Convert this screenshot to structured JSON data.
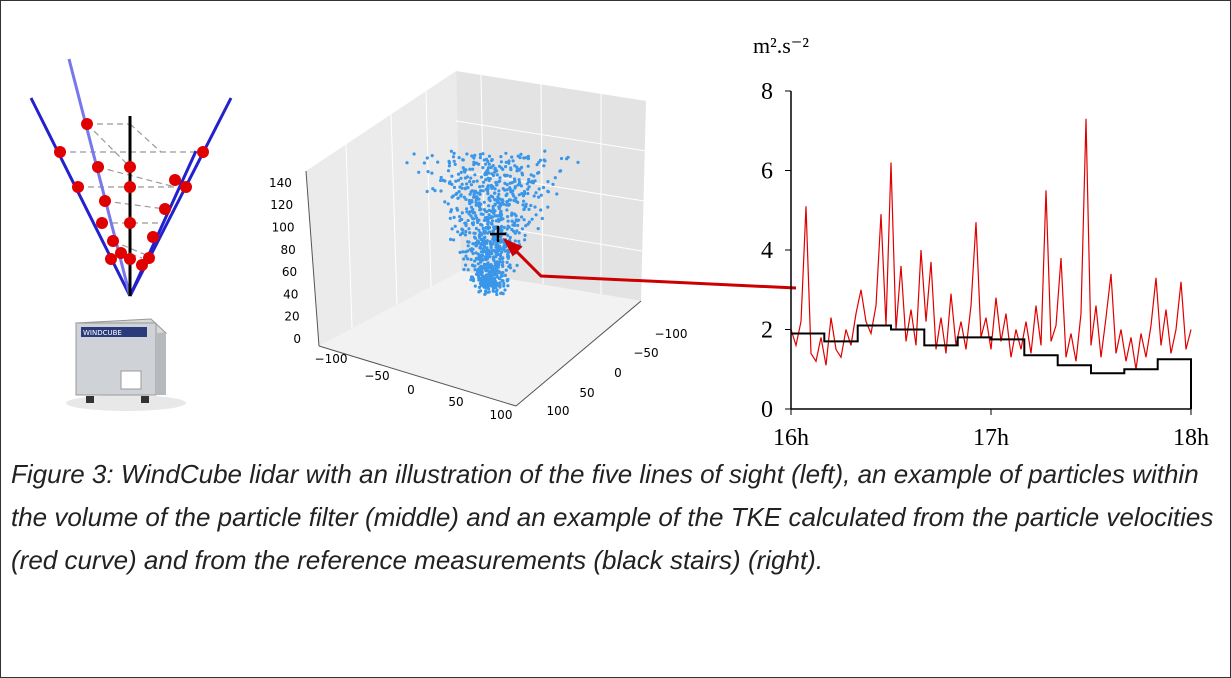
{
  "chart_data": {
    "type": "line",
    "y_label": "m².s⁻²",
    "xlim": [
      16,
      18
    ],
    "ylim": [
      0,
      8
    ],
    "xticks": [
      {
        "value": 16,
        "label": "16h"
      },
      {
        "value": 17,
        "label": "17h"
      },
      {
        "value": 18,
        "label": "18h"
      }
    ],
    "yticks": [
      0,
      2,
      4,
      6,
      8
    ],
    "series": [
      {
        "kind": "line",
        "color": "#e00000",
        "x": [
          16.0,
          16.025,
          16.05,
          16.075,
          16.1,
          16.125,
          16.15,
          16.175,
          16.2,
          16.225,
          16.25,
          16.275,
          16.3,
          16.325,
          16.35,
          16.375,
          16.4,
          16.425,
          16.45,
          16.475,
          16.5,
          16.525,
          16.55,
          16.575,
          16.6,
          16.625,
          16.65,
          16.675,
          16.7,
          16.725,
          16.75,
          16.775,
          16.8,
          16.825,
          16.85,
          16.875,
          16.9,
          16.925,
          16.95,
          16.975,
          17.0,
          17.025,
          17.05,
          17.075,
          17.1,
          17.125,
          17.15,
          17.175,
          17.2,
          17.225,
          17.25,
          17.275,
          17.3,
          17.325,
          17.35,
          17.375,
          17.4,
          17.425,
          17.45,
          17.475,
          17.5,
          17.525,
          17.55,
          17.575,
          17.6,
          17.625,
          17.65,
          17.675,
          17.7,
          17.725,
          17.75,
          17.775,
          17.8,
          17.825,
          17.85,
          17.875,
          17.9,
          17.925,
          17.95,
          17.975,
          18.0
        ],
        "values": [
          2.0,
          1.6,
          2.2,
          5.1,
          1.4,
          1.2,
          1.8,
          1.1,
          2.3,
          1.5,
          1.3,
          2.0,
          1.6,
          2.4,
          3.0,
          2.2,
          1.9,
          2.6,
          4.9,
          2.1,
          6.2,
          2.0,
          3.6,
          1.7,
          2.5,
          1.6,
          4.0,
          2.2,
          3.7,
          1.5,
          2.3,
          1.4,
          2.9,
          1.6,
          2.2,
          1.5,
          2.6,
          4.7,
          1.8,
          2.3,
          1.5,
          2.8,
          1.7,
          2.4,
          1.3,
          2.0,
          1.5,
          2.2,
          1.4,
          2.6,
          1.6,
          5.5,
          1.7,
          2.1,
          3.8,
          1.3,
          1.9,
          1.2,
          2.4,
          7.3,
          1.6,
          2.6,
          1.3,
          2.3,
          3.4,
          1.4,
          2.0,
          1.2,
          1.8,
          1.0,
          1.9,
          1.3,
          2.1,
          3.3,
          1.6,
          2.5,
          1.4,
          2.0,
          3.2,
          1.5,
          2.0
        ]
      },
      {
        "kind": "stairs",
        "color": "#000000",
        "x": [
          16,
          16.1667,
          16.3333,
          16.5,
          16.6667,
          16.8333,
          17,
          17.1667,
          17.3333,
          17.5,
          17.6667,
          17.8333
        ],
        "values": [
          1.9,
          1.7,
          2.1,
          2.0,
          1.6,
          1.8,
          1.75,
          1.35,
          1.1,
          0.9,
          1.0,
          1.25
        ]
      }
    ]
  },
  "scatter3d": {
    "z_ticks": [
      "0",
      "20",
      "40",
      "60",
      "80",
      "100",
      "120",
      "140"
    ],
    "x_ticks": [
      "−100",
      "−50",
      "0",
      "50",
      "100"
    ],
    "y_ticks": [
      "−100",
      "−50",
      "0",
      "50",
      "100"
    ]
  },
  "device_label": "WINDCUBE",
  "caption": "Figure 3: WindCube lidar with an illustration of the five lines of sight (left), an example of particles within the volume of the particle filter (middle) and an example of the TKE calculated from the particle velocities (red curve) and from the reference measurements (black stairs) (right)."
}
